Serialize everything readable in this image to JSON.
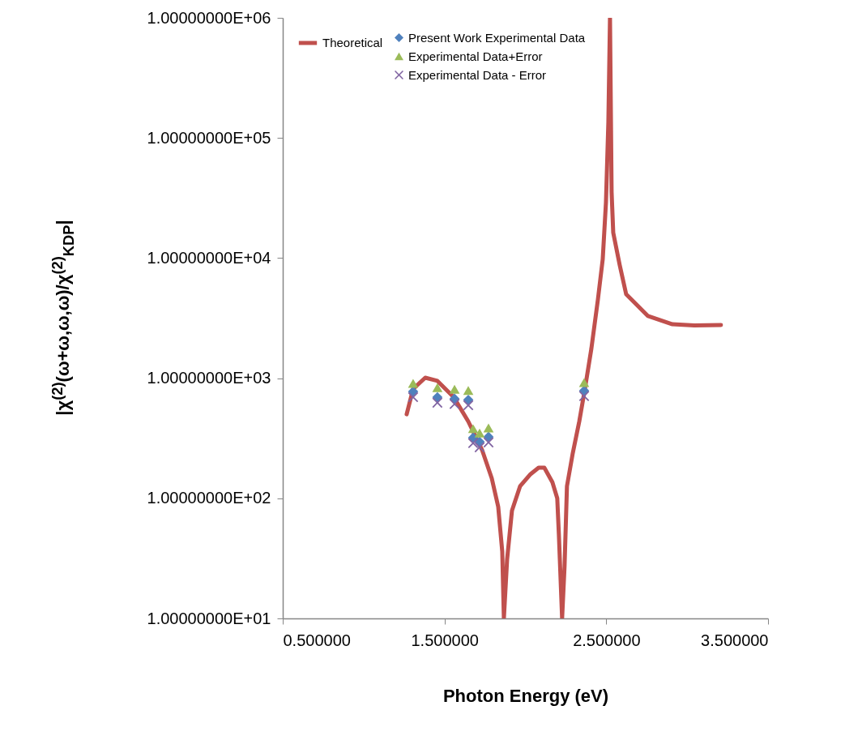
{
  "chart_data": {
    "type": "scatter",
    "xlabel": "Photon Energy (eV)",
    "ylabel": "|χ$^{(2)}$(ω+ω,ω,ω)/χ$^{(2)}$$_{KDP}$|",
    "x": [
      1.306,
      1.456,
      1.562,
      1.647,
      1.677,
      1.717,
      1.772,
      2.363
    ],
    "series": [
      {
        "name": "Theoretical",
        "type": "line",
        "color": "#c0504d",
        "x": [
          1.266,
          1.306,
          1.381,
          1.456,
          1.557,
          1.647,
          1.732,
          1.792,
          1.832,
          1.857,
          1.867,
          1.887,
          1.917,
          1.967,
          2.032,
          2.082,
          2.117,
          2.167,
          2.197,
          2.207,
          2.227,
          2.242,
          2.257,
          2.292,
          2.333,
          2.368,
          2.408,
          2.448,
          2.478,
          2.498,
          2.513,
          2.523,
          2.533,
          2.543,
          2.583,
          2.623,
          2.758,
          2.909,
          3.044,
          3.209
        ],
        "values": [
          501,
          813,
          1009,
          950,
          695,
          436,
          253,
          147,
          85,
          36,
          10,
          31,
          79,
          126,
          159,
          180,
          180,
          136,
          100,
          50,
          10,
          27,
          126,
          234,
          436,
          813,
          1766,
          4487,
          9750,
          28900,
          136000,
          1000000,
          35400,
          16300,
          8750,
          5000,
          3290,
          2810,
          2750,
          2770
        ]
      },
      {
        "name": "Present Work Experimental Data",
        "color": "#4f81bd",
        "marker": "diamond",
        "values": [
          774,
          695,
          675,
          660,
          320,
          296,
          325,
          787
        ]
      },
      {
        "name": "Experimental Data+Error",
        "color": "#9bbb59",
        "marker": "triangle",
        "values": [
          906,
          835,
          810,
          790,
          380,
          350,
          385,
          920
        ]
      },
      {
        "name": "Experimental Data - Error",
        "color": "#8064a2",
        "marker": "cross",
        "values": [
          695,
          625,
          610,
          595,
          288,
          266,
          292,
          710
        ]
      }
    ],
    "xlim": [
      0.5,
      3.5
    ],
    "xticks": [
      {
        "value": 0.5,
        "label": "0.500000"
      },
      {
        "value": 1.5,
        "label": "1.500000"
      },
      {
        "value": 2.5,
        "label": "2.500000"
      },
      {
        "value": 3.5,
        "label": "3.500000"
      }
    ],
    "log": true,
    "ylim": [
      10,
      1000000
    ],
    "yticks": [
      {
        "value": 10,
        "label": "1.00000000E+01"
      },
      {
        "value": 100,
        "label": "1.00000000E+02"
      },
      {
        "value": 1000,
        "label": "1.00000000E+03"
      },
      {
        "value": 10000,
        "label": "1.00000000E+04"
      },
      {
        "value": 100000,
        "label": "1.00000000E+05"
      },
      {
        "value": 1000000,
        "label": "1.00000000E+06"
      }
    ],
    "legend": "top left"
  }
}
